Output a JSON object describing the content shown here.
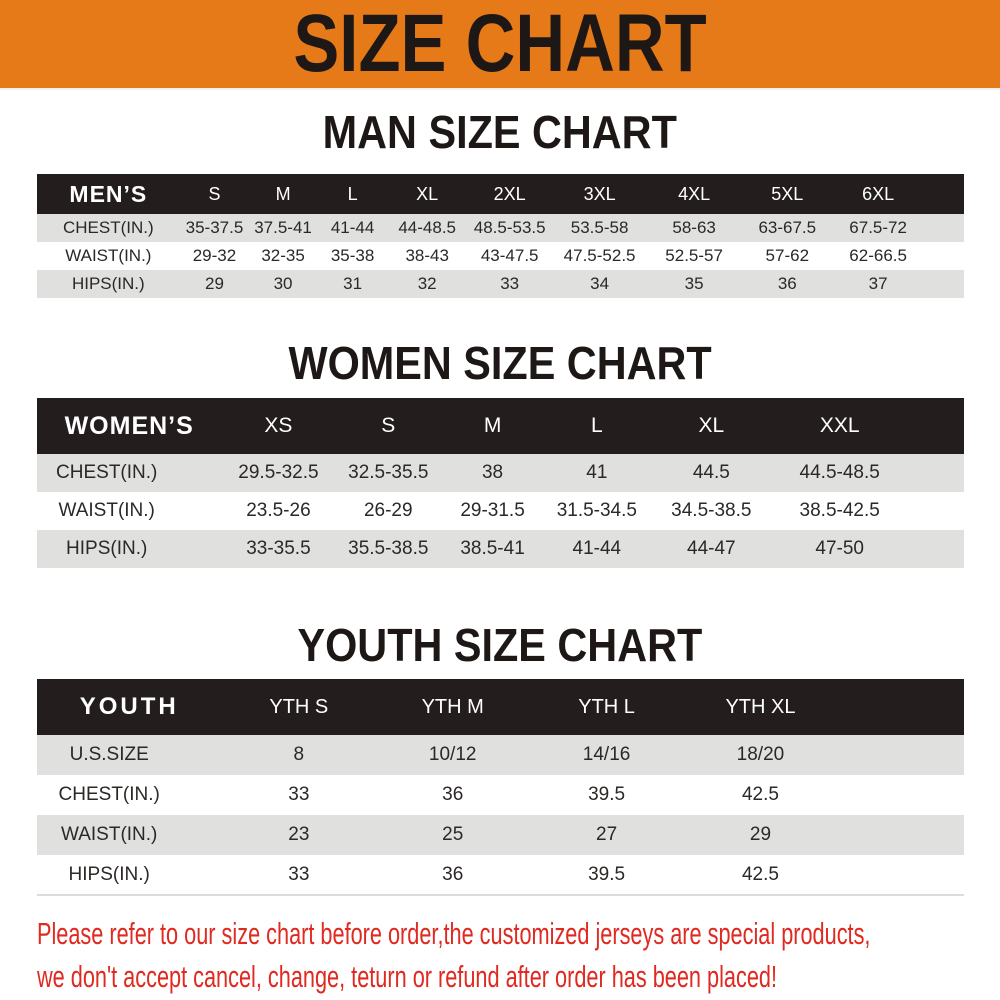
{
  "banner": {
    "title": "SIZE CHART",
    "background_color": "#E67A18",
    "text_color": "#1D1816"
  },
  "colors": {
    "table_header_black": "#231D1E",
    "row_stripe_gray": "#E0E0DE",
    "footer_red": "#E02920"
  },
  "chart_data": [
    {
      "type": "table",
      "title": "MAN SIZE CHART",
      "corner_label": "MEN’S",
      "columns": [
        "S",
        "M",
        "L",
        "XL",
        "2XL",
        "3XL",
        "4XL",
        "5XL",
        "6XL"
      ],
      "rows": [
        {
          "label": "CHEST(IN.)",
          "values": [
            "35-37.5",
            "37.5-41",
            "41-44",
            "44-48.5",
            "48.5-53.5",
            "53.5-58",
            "58-63",
            "63-67.5",
            "67.5-72"
          ]
        },
        {
          "label": "WAIST(IN.)",
          "values": [
            "29-32",
            "32-35",
            "35-38",
            "38-43",
            "43-47.5",
            "47.5-52.5",
            "52.5-57",
            "57-62",
            "62-66.5"
          ]
        },
        {
          "label": "HIPS(IN.)",
          "values": [
            "29",
            "30",
            "31",
            "32",
            "33",
            "34",
            "35",
            "36",
            "37"
          ]
        }
      ]
    },
    {
      "type": "table",
      "title": "WOMEN SIZE CHART",
      "corner_label": "WOMEN’S",
      "columns": [
        "XS",
        "S",
        "M",
        "L",
        "XL",
        "XXL"
      ],
      "rows": [
        {
          "label": "CHEST(IN.)",
          "values": [
            "29.5-32.5",
            "32.5-35.5",
            "38",
            "41",
            "44.5",
            "44.5-48.5"
          ]
        },
        {
          "label": "WAIST(IN.)",
          "values": [
            "23.5-26",
            "26-29",
            "29-31.5",
            "31.5-34.5",
            "34.5-38.5",
            "38.5-42.5"
          ]
        },
        {
          "label": "HIPS(IN.)",
          "values": [
            "33-35.5",
            "35.5-38.5",
            "38.5-41",
            "41-44",
            "44-47",
            "47-50"
          ]
        }
      ]
    },
    {
      "type": "table",
      "title": "YOUTH SIZE CHART",
      "corner_label": "YOUTH",
      "columns": [
        "YTH S",
        "YTH M",
        "YTH L",
        "YTH XL"
      ],
      "rows": [
        {
          "label": "U.S.SIZE",
          "values": [
            "8",
            "10/12",
            "14/16",
            "18/20"
          ]
        },
        {
          "label": "CHEST(IN.)",
          "values": [
            "33",
            "36",
            "39.5",
            "42.5"
          ]
        },
        {
          "label": "WAIST(IN.)",
          "values": [
            "23",
            "25",
            "27",
            "29"
          ]
        },
        {
          "label": "HIPS(IN.)",
          "values": [
            "33",
            "36",
            "39.5",
            "42.5"
          ]
        }
      ]
    }
  ],
  "footer": {
    "line1": "Please refer to our size chart before order,the customized jerseys are special products,",
    "line2": "we don't accept cancel, change, teturn or refund after order has been placed!"
  }
}
